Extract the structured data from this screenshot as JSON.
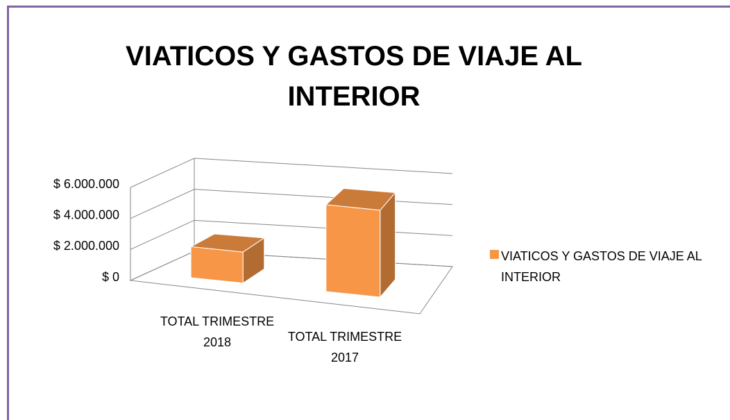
{
  "chart_data": {
    "type": "bar3d",
    "title": "VIATICOS Y GASTOS DE VIAJE AL INTERIOR",
    "categories": [
      "TOTAL TRIMESTRE 2018",
      "TOTAL TRIMESTRE 2017"
    ],
    "series": [
      {
        "name": "VIATICOS Y GASTOS DE VIAJE AL INTERIOR",
        "color": "#f79646",
        "values": [
          2000000,
          5600000
        ]
      }
    ],
    "ylim": [
      0,
      6000000
    ],
    "yticks": [
      {
        "value": 0,
        "label": "$ 0"
      },
      {
        "value": 2000000,
        "label": "$ 2.000.000"
      },
      {
        "value": 4000000,
        "label": "$ 4.000.000"
      },
      {
        "value": 6000000,
        "label": "$ 6.000.000"
      }
    ],
    "grid": true,
    "legend": "right"
  }
}
